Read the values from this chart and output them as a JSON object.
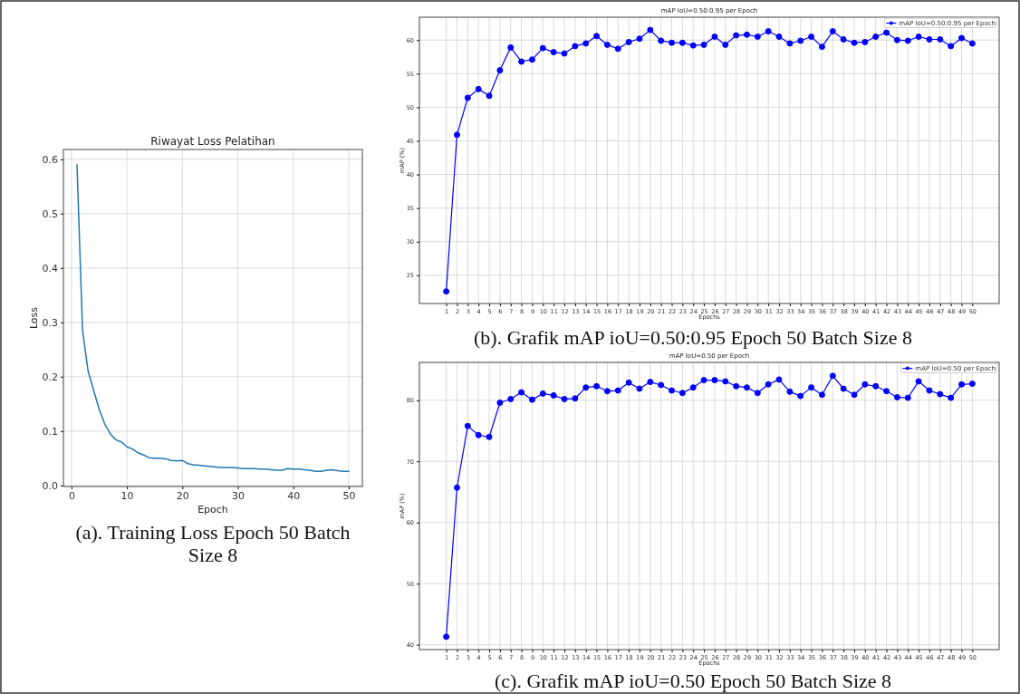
{
  "chart_data": [
    {
      "type": "line",
      "title": "Riwayat Loss Pelatihan",
      "xlabel": "Epoch",
      "ylabel": "Loss",
      "annotations": [
        "(a). Training Loss Epoch 50 Batch Size 8"
      ],
      "x": [
        1,
        2,
        3,
        4,
        5,
        6,
        7,
        8,
        9,
        10,
        11,
        12,
        13,
        14,
        15,
        16,
        17,
        18,
        19,
        20,
        21,
        22,
        23,
        24,
        25,
        26,
        27,
        28,
        29,
        30,
        31,
        32,
        33,
        34,
        35,
        36,
        37,
        38,
        39,
        40,
        41,
        42,
        43,
        44,
        45,
        46,
        47,
        48,
        49,
        50
      ],
      "series": [
        {
          "color": "#1f77b4",
          "values": [
            0.59,
            0.285,
            0.21,
            0.175,
            0.14,
            0.113,
            0.095,
            0.084,
            0.08,
            0.071,
            0.067,
            0.06,
            0.056,
            0.051,
            0.05,
            0.05,
            0.049,
            0.046,
            0.045,
            0.046,
            0.04,
            0.038,
            0.037,
            0.036,
            0.035,
            0.034,
            0.033,
            0.033,
            0.033,
            0.032,
            0.031,
            0.031,
            0.031,
            0.03,
            0.03,
            0.029,
            0.028,
            0.028,
            0.031,
            0.03,
            0.03,
            0.029,
            0.028,
            0.026,
            0.026,
            0.028,
            0.029,
            0.027,
            0.026,
            0.026
          ]
        }
      ],
      "xlim": [
        -1.45,
        52.45
      ],
      "xticks": [
        0,
        10,
        20,
        30,
        40,
        50
      ],
      "ylim": [
        -0.002,
        0.618
      ],
      "yticks": [
        {
          "value": 0,
          "label": "0.0"
        },
        0.1,
        0.2,
        0.3,
        0.4,
        0.5,
        0.6
      ],
      "grid": true,
      "marker": "none"
    },
    {
      "type": "line",
      "title": "mAP IoU=0.50:0.95 per Epoch",
      "xlabel": "Epochs",
      "ylabel": "mAP (%)",
      "annotations": [
        "(b). Grafik mAP ioU=0.50:0.95 Epoch 50 Batch Size 8"
      ],
      "x": [
        1,
        2,
        3,
        4,
        5,
        6,
        7,
        8,
        9,
        10,
        11,
        12,
        13,
        14,
        15,
        16,
        17,
        18,
        19,
        20,
        21,
        22,
        23,
        24,
        25,
        26,
        27,
        28,
        29,
        30,
        31,
        32,
        33,
        34,
        35,
        36,
        37,
        38,
        39,
        40,
        41,
        42,
        43,
        44,
        45,
        46,
        47,
        48,
        49,
        50
      ],
      "series": [
        {
          "name": "mAP IoU=0.50:0.95 per Epoch",
          "color": "#0000ff",
          "values": [
            22.6,
            45.9,
            51.4,
            52.7,
            51.7,
            55.5,
            58.9,
            56.8,
            57.1,
            58.8,
            58.2,
            58.0,
            59.1,
            59.5,
            60.6,
            59.3,
            58.7,
            59.7,
            60.2,
            61.5,
            59.9,
            59.6,
            59.6,
            59.2,
            59.3,
            60.5,
            59.3,
            60.7,
            60.8,
            60.5,
            61.3,
            60.5,
            59.5,
            59.9,
            60.5,
            59.0,
            61.3,
            60.1,
            59.6,
            59.7,
            60.5,
            61.1,
            60.0,
            59.9,
            60.5,
            60.1,
            60.1,
            59.1,
            60.3,
            59.5
          ]
        }
      ],
      "xlim": [
        -1.5,
        52.5
      ],
      "xticks": [
        1,
        2,
        3,
        4,
        5,
        6,
        7,
        8,
        9,
        10,
        11,
        12,
        13,
        14,
        15,
        16,
        17,
        18,
        19,
        20,
        21,
        22,
        23,
        24,
        25,
        26,
        27,
        28,
        29,
        30,
        31,
        32,
        33,
        34,
        35,
        36,
        37,
        38,
        39,
        40,
        41,
        42,
        43,
        44,
        45,
        46,
        47,
        48,
        49,
        50
      ],
      "ylim": [
        20.8,
        63.4
      ],
      "yticks": [
        25,
        30,
        35,
        40,
        45,
        50,
        55,
        60
      ],
      "grid": true,
      "marker": "circle",
      "legend": "top right"
    },
    {
      "type": "line",
      "title": "mAP IoU=0.50 per Epoch",
      "xlabel": "Epochs",
      "ylabel": "mAP (%)",
      "annotations": [
        "(c). Grafik mAP ioU=0.50 Epoch 50 Batch Size 8"
      ],
      "x": [
        1,
        2,
        3,
        4,
        5,
        6,
        7,
        8,
        9,
        10,
        11,
        12,
        13,
        14,
        15,
        16,
        17,
        18,
        19,
        20,
        21,
        22,
        23,
        24,
        25,
        26,
        27,
        28,
        29,
        30,
        31,
        32,
        33,
        34,
        35,
        36,
        37,
        38,
        39,
        40,
        41,
        42,
        43,
        44,
        45,
        46,
        47,
        48,
        49,
        50
      ],
      "series": [
        {
          "name": "mAP IoU=0.50 per Epoch",
          "color": "#0000ff",
          "values": [
            41.3,
            65.7,
            75.8,
            74.3,
            74.0,
            79.6,
            80.2,
            81.3,
            80.1,
            81.1,
            80.8,
            80.2,
            80.3,
            82.1,
            82.3,
            81.5,
            81.6,
            82.9,
            81.9,
            83.0,
            82.5,
            81.6,
            81.2,
            82.1,
            83.3,
            83.3,
            83.1,
            82.3,
            82.1,
            81.2,
            82.6,
            83.4,
            81.4,
            80.7,
            82.1,
            80.9,
            84.0,
            81.9,
            80.9,
            82.6,
            82.3,
            81.5,
            80.5,
            80.4,
            83.1,
            81.6,
            81.0,
            80.4,
            82.6,
            82.7
          ]
        }
      ],
      "xlim": [
        -1.5,
        52.5
      ],
      "xticks": [
        1,
        2,
        3,
        4,
        5,
        6,
        7,
        8,
        9,
        10,
        11,
        12,
        13,
        14,
        15,
        16,
        17,
        18,
        19,
        20,
        21,
        22,
        23,
        24,
        25,
        26,
        27,
        28,
        29,
        30,
        31,
        32,
        33,
        34,
        35,
        36,
        37,
        38,
        39,
        40,
        41,
        42,
        43,
        44,
        45,
        46,
        47,
        48,
        49,
        50
      ],
      "ylim": [
        39.2,
        86.2
      ],
      "yticks": [
        40,
        50,
        60,
        70,
        80
      ],
      "grid": true,
      "marker": "circle",
      "legend": "top right"
    }
  ]
}
